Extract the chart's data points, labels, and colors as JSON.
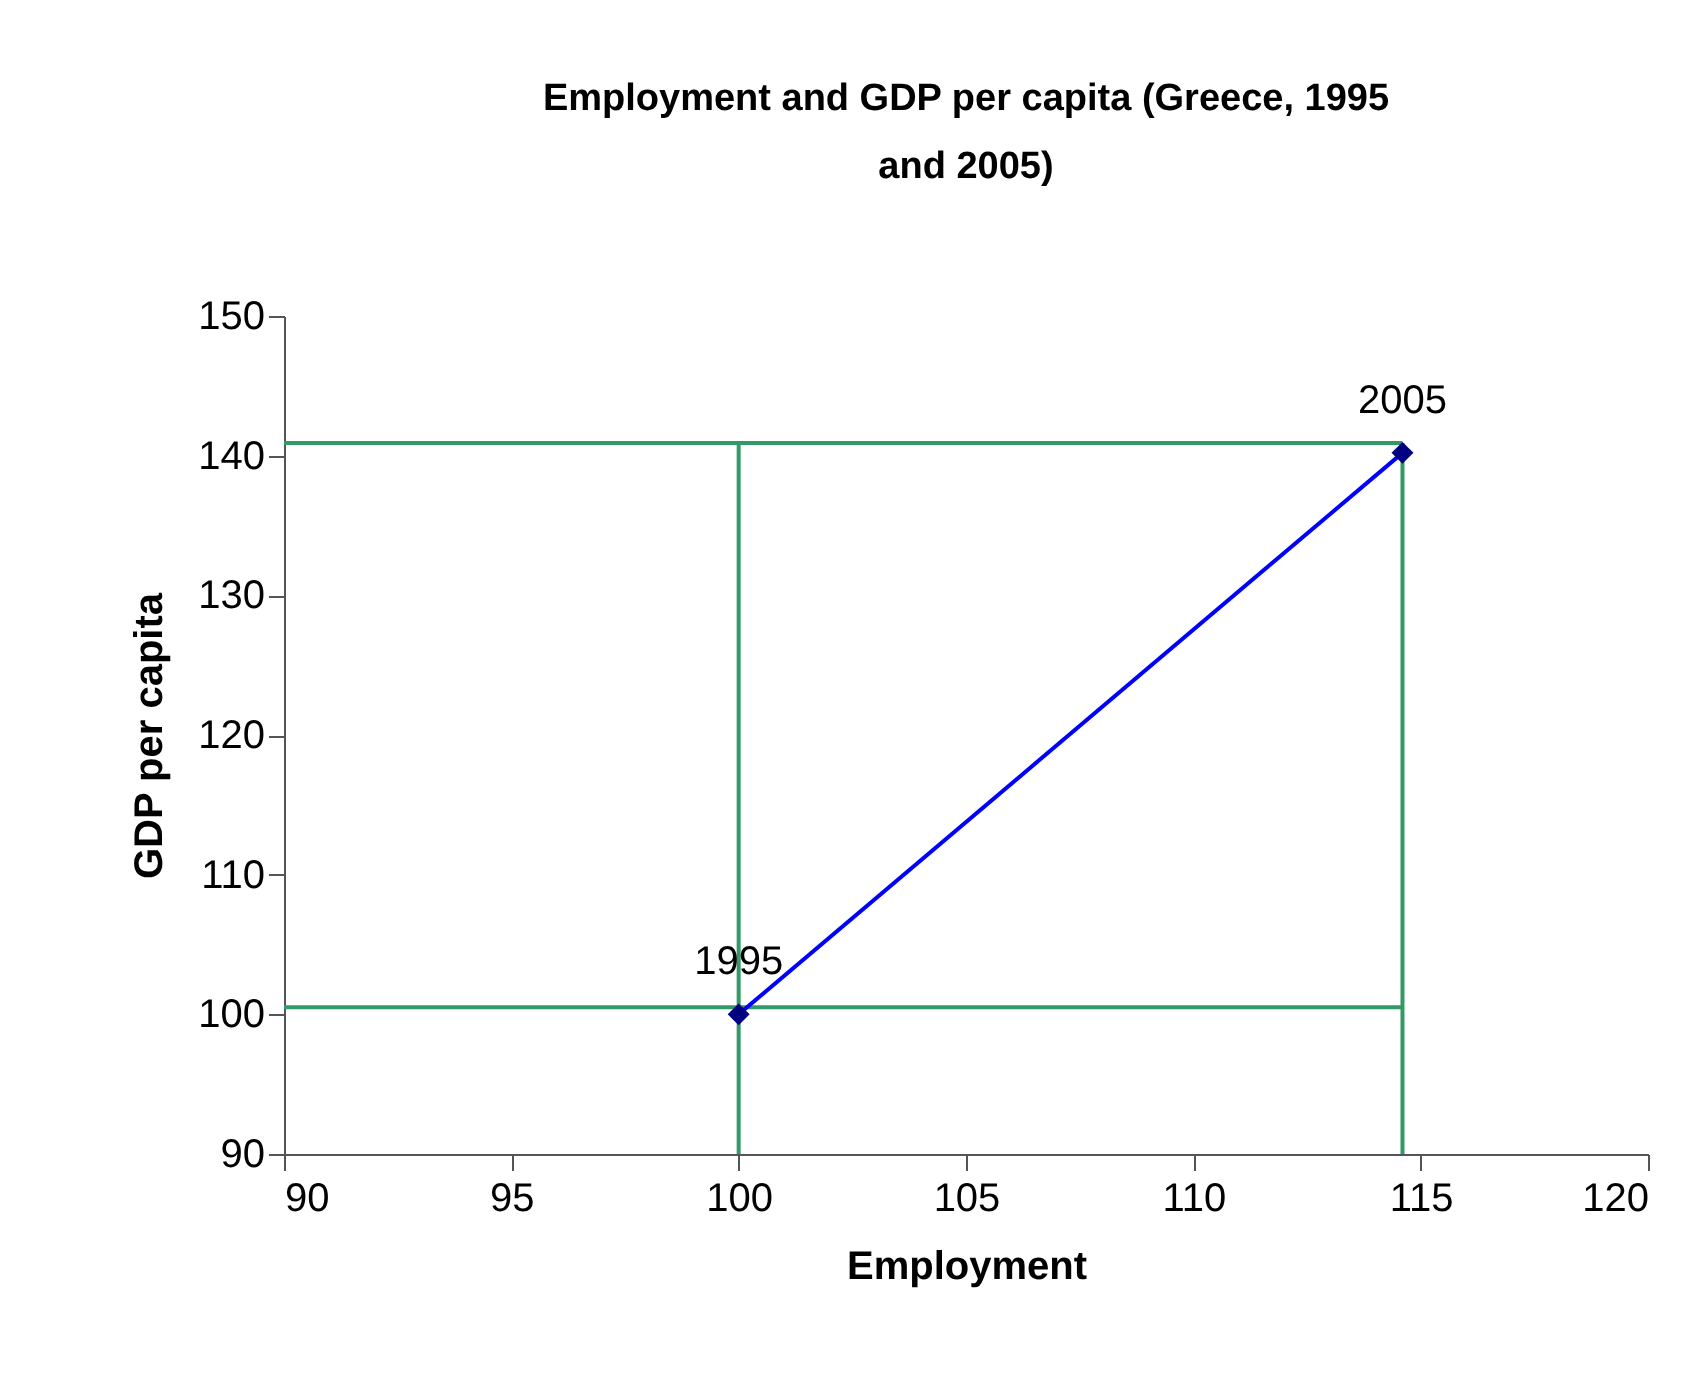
{
  "chart_data": {
    "type": "line",
    "title": "Employment and GDP per capita (Greece, 1995 and 2005)",
    "xlabel": "Employment",
    "ylabel": "GDP per capita",
    "x": [
      100,
      114.6
    ],
    "series": [
      {
        "color": "#0000ff",
        "values": [
          100,
          140.2
        ]
      }
    ],
    "annotations": [
      {
        "text": "1995",
        "x": 100,
        "y": 100
      },
      {
        "text": "2005",
        "x": 114.6,
        "y": 140.2
      }
    ],
    "marker": "diamond",
    "xlim": [
      90,
      120
    ],
    "xticks": [
      90,
      95,
      100,
      105,
      110,
      115,
      120
    ],
    "ylim": [
      90,
      150
    ],
    "yticks": [
      90,
      100,
      110,
      120,
      130,
      140,
      150
    ],
    "ref_lines": [
      {
        "axis": "x",
        "value": 100,
        "color": "#339966"
      },
      {
        "axis": "x",
        "value": 114.6,
        "color": "#339966"
      },
      {
        "axis": "y",
        "value": 100.5,
        "color": "#339966"
      },
      {
        "axis": "y",
        "value": 140.9,
        "color": "#339966"
      }
    ],
    "grid": false
  }
}
